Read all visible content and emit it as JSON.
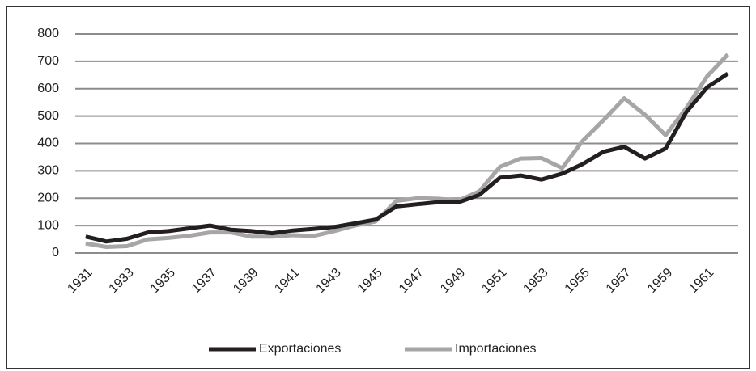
{
  "chart_data": {
    "type": "line",
    "categories": [
      "1931",
      null,
      "1933",
      null,
      "1935",
      null,
      "1937",
      null,
      "1939",
      null,
      "1941",
      null,
      "1943",
      null,
      "1945",
      null,
      "1947",
      null,
      "1949",
      null,
      "1951",
      null,
      "1953",
      null,
      "1955",
      null,
      "1957",
      null,
      "1959",
      null,
      "1961",
      null
    ],
    "series": [
      {
        "name": "Exportaciones",
        "color": "#231f20",
        "values": [
          60,
          42,
          52,
          75,
          80,
          90,
          100,
          85,
          80,
          72,
          82,
          88,
          95,
          108,
          122,
          170,
          178,
          185,
          185,
          212,
          275,
          283,
          268,
          290,
          325,
          370,
          388,
          345,
          382,
          515,
          605,
          655
        ]
      },
      {
        "name": "Importaciones",
        "color": "#a6a6a6",
        "values": [
          35,
          22,
          25,
          50,
          55,
          63,
          75,
          75,
          60,
          60,
          65,
          62,
          80,
          100,
          115,
          190,
          200,
          198,
          192,
          225,
          315,
          345,
          347,
          310,
          410,
          485,
          565,
          505,
          430,
          530,
          645,
          725
        ]
      }
    ],
    "ylim": [
      0,
      800
    ],
    "yticks": [
      0,
      100,
      200,
      300,
      400,
      500,
      600,
      700,
      800
    ],
    "grid": true,
    "legend": "bottom"
  }
}
